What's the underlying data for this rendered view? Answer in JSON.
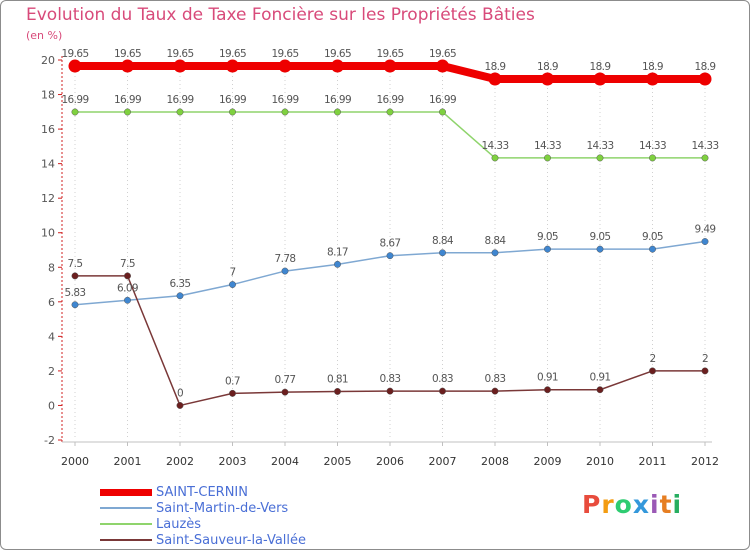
{
  "chart_data": {
    "type": "line",
    "title": "Evolution du Taux de Taxe Foncière sur les Propriétés Bâties",
    "unit_label": "(en %)",
    "ylim": [
      -2,
      20
    ],
    "yticks": [
      "-2",
      "0",
      "2",
      "4",
      "6",
      "8",
      "10",
      "12",
      "14",
      "16",
      "18",
      "20"
    ],
    "x": [
      "2000",
      "2001",
      "2002",
      "2003",
      "2004",
      "2005",
      "2006",
      "2007",
      "2008",
      "2009",
      "2010",
      "2011",
      "2012"
    ],
    "grid": "vertical-dotted",
    "legend_position": "bottom-left",
    "series": [
      {
        "name": "SAINT-CERNIN",
        "color": "#ee0000",
        "marker_color": "#ee0000",
        "values": [
          19.65,
          19.65,
          19.65,
          19.65,
          19.65,
          19.65,
          19.65,
          19.65,
          18.9,
          18.9,
          18.9,
          18.9,
          18.9
        ],
        "labels": [
          "19.65",
          "19.65",
          "19.65",
          "19.65",
          "19.65",
          "19.65",
          "19.65",
          "19.65",
          "18.9",
          "18.9",
          "18.9",
          "18.9",
          "18.9"
        ]
      },
      {
        "name": "Saint-Martin-de-Vers",
        "color": "#7fa8d2",
        "marker_color": "#3f86d0",
        "values": [
          5.83,
          6.09,
          6.35,
          7,
          7.78,
          8.17,
          8.67,
          8.84,
          8.84,
          9.05,
          9.05,
          9.05,
          9.49
        ],
        "labels": [
          "5.83",
          "6.09",
          "6.35",
          "7",
          "7.78",
          "8.17",
          "8.67",
          "8.84",
          "8.84",
          "9.05",
          "9.05",
          "9.05",
          "9.49"
        ]
      },
      {
        "name": "Lauzès",
        "color": "#8fd46c",
        "marker_color": "#7fd13f",
        "values": [
          16.99,
          16.99,
          16.99,
          16.99,
          16.99,
          16.99,
          16.99,
          16.99,
          14.33,
          14.33,
          14.33,
          14.33,
          14.33
        ],
        "labels": [
          "16.99",
          "16.99",
          "16.99",
          "16.99",
          "16.99",
          "16.99",
          "16.99",
          "16.99",
          "14.33",
          "14.33",
          "14.33",
          "14.33",
          "14.33"
        ]
      },
      {
        "name": "Saint-Sauveur-la-Vallée",
        "color": "#7a3838",
        "marker_color": "#6b1f1f",
        "values": [
          7.5,
          7.5,
          0,
          0.7,
          0.77,
          0.81,
          0.83,
          0.83,
          0.83,
          0.91,
          0.91,
          2,
          2
        ],
        "labels": [
          "7.5",
          "7.5",
          "0",
          "0.7",
          "0.77",
          "0.81",
          "0.83",
          "0.83",
          "0.83",
          "0.91",
          "0.91",
          "2",
          "2"
        ]
      }
    ]
  },
  "logo": {
    "letters": [
      "P",
      "r",
      "o",
      "x",
      "i",
      "t",
      "i"
    ],
    "colors": [
      "#e84c3d",
      "#f39c12",
      "#2ecc71",
      "#3498db",
      "#9b59b6",
      "#e67e22",
      "#27ae60"
    ]
  }
}
